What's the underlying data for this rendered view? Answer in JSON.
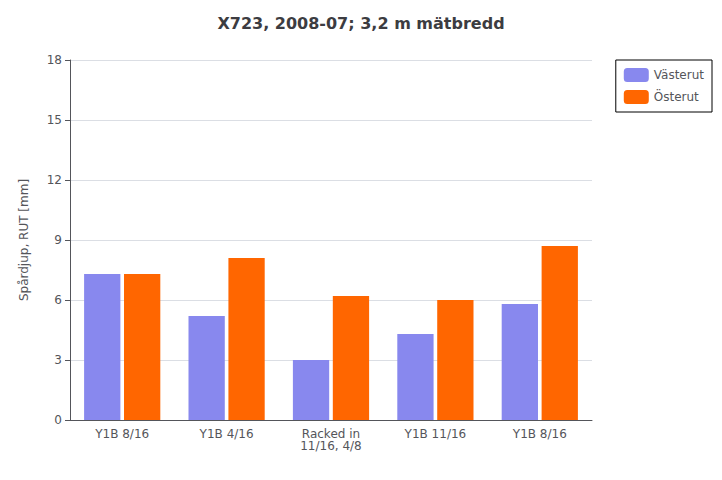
{
  "chart_data": {
    "type": "bar",
    "title": "X723, 2008-07; 3,2 m mätbredd",
    "ylabel": "Spårdjup, RUT [mm]",
    "categories": [
      "Y1B 8/16",
      "Y1B 4/16",
      "Racked in\n11/16, 4/8",
      "Y1B 11/16",
      "Y1B 8/16"
    ],
    "series": [
      {
        "name": "Västerut",
        "color": "#8888EE",
        "values": [
          7.3,
          5.2,
          3.0,
          4.3,
          5.8
        ]
      },
      {
        "name": "Österut",
        "color": "#FF6600",
        "values": [
          7.3,
          8.1,
          6.2,
          6.0,
          8.7
        ]
      }
    ],
    "ylim": [
      0,
      18
    ],
    "yticks": [
      0,
      3,
      6,
      9,
      12,
      15,
      18
    ],
    "grid": true,
    "legend": "right"
  }
}
